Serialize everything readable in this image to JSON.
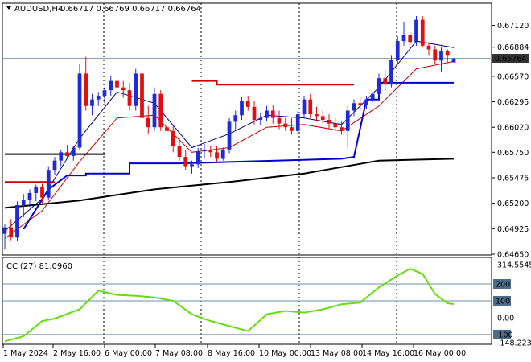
{
  "header": {
    "symbol": "AUDUSD,H4",
    "values": "0.66717 0.66769 0.66717 0.66764"
  },
  "colors": {
    "bull": "#1f2bd6",
    "bear": "#e01010",
    "sma_fast": "#000080",
    "ema_red": "#cc0000",
    "supertrend": "#0000cc",
    "sma_slow": "#000000",
    "resistance": "#cc0000",
    "support_black": "#000000",
    "cci": "#66dd11",
    "level_line": "#6a8caf",
    "price_badge": "#333333"
  },
  "price_axis": {
    "ticks": [
      "0.67120",
      "0.66884",
      "0.66570",
      "0.66295",
      "0.66020",
      "0.65750",
      "0.65475",
      "0.65200",
      "0.64925",
      "0.64650"
    ],
    "current": "0.66764"
  },
  "cci_panel": {
    "label": "CCI(27) 81.0960",
    "ticks": [
      "314.5545",
      "200",
      "100",
      "0.00",
      "-100",
      "-148.2232"
    ],
    "levels": [
      200,
      100,
      -100
    ]
  },
  "x_axis": {
    "ticks": [
      "1 May 2024",
      "2 May 16:00",
      "6 May 00:00",
      "7 May 08:00",
      "8 May 16:00",
      "10 May 00:00",
      "13 May 08:00",
      "14 May 16:00",
      "16 May 00:00"
    ]
  },
  "chart_data": [
    {
      "type": "candlestick",
      "title": "AUDUSD,H4",
      "ylim": [
        0.6465,
        0.6722
      ],
      "candles": [
        [
          0.6487,
          0.6497,
          0.647,
          0.6494
        ],
        [
          0.6494,
          0.6503,
          0.648,
          0.6483
        ],
        [
          0.6483,
          0.6522,
          0.6479,
          0.6518
        ],
        [
          0.6518,
          0.653,
          0.6505,
          0.6524
        ],
        [
          0.6524,
          0.6535,
          0.6516,
          0.6531
        ],
        [
          0.6531,
          0.654,
          0.6522,
          0.6538
        ],
        [
          0.6538,
          0.6541,
          0.652,
          0.6526
        ],
        [
          0.6526,
          0.656,
          0.6523,
          0.6556
        ],
        [
          0.6556,
          0.657,
          0.655,
          0.6566
        ],
        [
          0.6566,
          0.6578,
          0.656,
          0.6575
        ],
        [
          0.6575,
          0.6583,
          0.6568,
          0.6571
        ],
        [
          0.6571,
          0.6582,
          0.6566,
          0.658
        ],
        [
          0.658,
          0.667,
          0.6578,
          0.666
        ],
        [
          0.666,
          0.6678,
          0.662,
          0.6625
        ],
        [
          0.6625,
          0.6638,
          0.6615,
          0.6632
        ],
        [
          0.6632,
          0.664,
          0.6625,
          0.6636
        ],
        [
          0.6636,
          0.6645,
          0.6628,
          0.6642
        ],
        [
          0.6642,
          0.6658,
          0.6636,
          0.6652
        ],
        [
          0.6652,
          0.666,
          0.664,
          0.6645
        ],
        [
          0.6645,
          0.6652,
          0.6634,
          0.6642
        ],
        [
          0.6642,
          0.665,
          0.662,
          0.6625
        ],
        [
          0.6625,
          0.6665,
          0.662,
          0.666
        ],
        [
          0.666,
          0.6668,
          0.6608,
          0.6612
        ],
        [
          0.6612,
          0.6625,
          0.6595,
          0.6602
        ],
        [
          0.6602,
          0.6645,
          0.6598,
          0.6638
        ],
        [
          0.6638,
          0.6642,
          0.6598,
          0.6602
        ],
        [
          0.6602,
          0.661,
          0.659,
          0.6598
        ],
        [
          0.6598,
          0.6605,
          0.6575,
          0.6582
        ],
        [
          0.6582,
          0.659,
          0.6566,
          0.657
        ],
        [
          0.657,
          0.6578,
          0.6556,
          0.656
        ],
        [
          0.656,
          0.6566,
          0.6552,
          0.6562
        ],
        [
          0.6562,
          0.658,
          0.6558,
          0.6576
        ],
        [
          0.6576,
          0.6584,
          0.6568,
          0.6578
        ],
        [
          0.6578,
          0.6582,
          0.657,
          0.6575
        ],
        [
          0.6575,
          0.6582,
          0.6565,
          0.6568
        ],
        [
          0.6568,
          0.658,
          0.6566,
          0.6578
        ],
        [
          0.6578,
          0.6612,
          0.6574,
          0.6608
        ],
        [
          0.6608,
          0.662,
          0.66,
          0.6615
        ],
        [
          0.6615,
          0.6635,
          0.661,
          0.663
        ],
        [
          0.663,
          0.6636,
          0.662,
          0.6624
        ],
        [
          0.6624,
          0.663,
          0.6605,
          0.661
        ],
        [
          0.661,
          0.6618,
          0.6604,
          0.6612
        ],
        [
          0.6612,
          0.6625,
          0.6608,
          0.662
        ],
        [
          0.662,
          0.6626,
          0.6606,
          0.6612
        ],
        [
          0.6612,
          0.662,
          0.66,
          0.6606
        ],
        [
          0.6606,
          0.6612,
          0.6598,
          0.6602
        ],
        [
          0.6602,
          0.6612,
          0.6594,
          0.6598
        ],
        [
          0.6598,
          0.662,
          0.6594,
          0.6616
        ],
        [
          0.6616,
          0.6636,
          0.6612,
          0.6632
        ],
        [
          0.6632,
          0.6638,
          0.6612,
          0.6616
        ],
        [
          0.6616,
          0.6624,
          0.6608,
          0.6614
        ],
        [
          0.6614,
          0.662,
          0.6606,
          0.661
        ],
        [
          0.661,
          0.6616,
          0.66,
          0.6606
        ],
        [
          0.6606,
          0.6612,
          0.6598,
          0.6602
        ],
        [
          0.6602,
          0.6608,
          0.6594,
          0.6598
        ],
        [
          0.6598,
          0.6625,
          0.658,
          0.662
        ],
        [
          0.662,
          0.6632,
          0.6614,
          0.6628
        ],
        [
          0.6628,
          0.6634,
          0.662,
          0.6626
        ],
        [
          0.6626,
          0.6636,
          0.6622,
          0.6632
        ],
        [
          0.6632,
          0.664,
          0.6628,
          0.6638
        ],
        [
          0.6638,
          0.666,
          0.6634,
          0.6655
        ],
        [
          0.6655,
          0.6664,
          0.6642,
          0.6648
        ],
        [
          0.6648,
          0.668,
          0.6645,
          0.6675
        ],
        [
          0.6675,
          0.67,
          0.667,
          0.6695
        ],
        [
          0.6695,
          0.6716,
          0.669,
          0.6702
        ],
        [
          0.6702,
          0.6705,
          0.669,
          0.6694
        ],
        [
          0.6694,
          0.6722,
          0.669,
          0.6718
        ],
        [
          0.6718,
          0.6722,
          0.6688,
          0.669
        ],
        [
          0.669,
          0.6694,
          0.668,
          0.6686
        ],
        [
          0.6686,
          0.669,
          0.667,
          0.6674
        ],
        [
          0.6674,
          0.6688,
          0.6662,
          0.6684
        ],
        [
          0.6684,
          0.6686,
          0.6672,
          0.668
        ],
        [
          0.6672,
          0.6677,
          0.6672,
          0.6676
        ]
      ],
      "series": [
        {
          "type": "line",
          "points": [
            [
              0,
              0.649
            ],
            [
              6,
              0.6525
            ],
            [
              12,
              0.659
            ],
            [
              18,
              0.664
            ],
            [
              24,
              0.6628
            ],
            [
              30,
              0.658
            ],
            [
              36,
              0.6595
            ],
            [
              42,
              0.6615
            ],
            [
              48,
              0.6612
            ],
            [
              54,
              0.6605
            ],
            [
              60,
              0.6645
            ],
            [
              66,
              0.6695
            ],
            [
              72,
              0.6688
            ]
          ]
        },
        {
          "type": "line",
          "points": [
            [
              0,
              0.6482
            ],
            [
              6,
              0.6512
            ],
            [
              12,
              0.6565
            ],
            [
              18,
              0.6612
            ],
            [
              24,
              0.6615
            ],
            [
              30,
              0.6575
            ],
            [
              36,
              0.658
            ],
            [
              42,
              0.6602
            ],
            [
              48,
              0.6605
            ],
            [
              54,
              0.6598
            ],
            [
              60,
              0.6625
            ],
            [
              66,
              0.6665
            ],
            [
              72,
              0.6673
            ]
          ]
        },
        {
          "type": "step",
          "points": [
            [
              3,
              0.6492
            ],
            [
              7,
              0.6535
            ],
            [
              10,
              0.655
            ],
            [
              13,
              0.655
            ],
            [
              13,
              0.6552
            ],
            [
              20,
              0.6552
            ],
            [
              20,
              0.6563
            ],
            [
              28,
              0.6563
            ],
            [
              54,
              0.6568
            ],
            [
              56,
              0.657
            ],
            [
              58,
              0.6632
            ],
            [
              60,
              0.6632
            ],
            [
              60,
              0.665
            ],
            [
              72,
              0.665
            ]
          ]
        },
        {
          "type": "line",
          "points": [
            [
              0,
              0.6515
            ],
            [
              12,
              0.6523
            ],
            [
              24,
              0.6535
            ],
            [
              36,
              0.6543
            ],
            [
              48,
              0.6552
            ],
            [
              60,
              0.6566
            ],
            [
              72,
              0.6568
            ]
          ]
        },
        {
          "type": "step",
          "points": [
            [
              30,
              0.6652
            ],
            [
              34,
              0.6652
            ],
            [
              34,
              0.6648
            ],
            [
              56,
              0.6648
            ]
          ]
        },
        {
          "type": "step",
          "points": [
            [
              0,
              0.6573
            ],
            [
              16,
              0.6573
            ]
          ]
        },
        {
          "type": "step",
          "points": [
            [
              0,
              0.6543
            ],
            [
              8,
              0.6543
            ]
          ]
        }
      ]
    },
    {
      "type": "line",
      "title": "CCI(27) 81.0960",
      "ylim": [
        -148.2232,
        314.5545
      ],
      "series": [
        {
          "name": "CCI(27)",
          "points": [
            [
              0,
              -140
            ],
            [
              3,
              -110
            ],
            [
              6,
              -20
            ],
            [
              8,
              -5
            ],
            [
              12,
              50
            ],
            [
              15,
              160
            ],
            [
              18,
              135
            ],
            [
              21,
              130
            ],
            [
              24,
              120
            ],
            [
              27,
              100
            ],
            [
              30,
              20
            ],
            [
              33,
              -20
            ],
            [
              36,
              -50
            ],
            [
              39,
              -80
            ],
            [
              42,
              20
            ],
            [
              45,
              40
            ],
            [
              48,
              30
            ],
            [
              51,
              50
            ],
            [
              54,
              80
            ],
            [
              57,
              90
            ],
            [
              60,
              180
            ],
            [
              63,
              250
            ],
            [
              65,
              290
            ],
            [
              67,
              260
            ],
            [
              69,
              140
            ],
            [
              71,
              85
            ],
            [
              72,
              81
            ]
          ]
        }
      ]
    }
  ]
}
